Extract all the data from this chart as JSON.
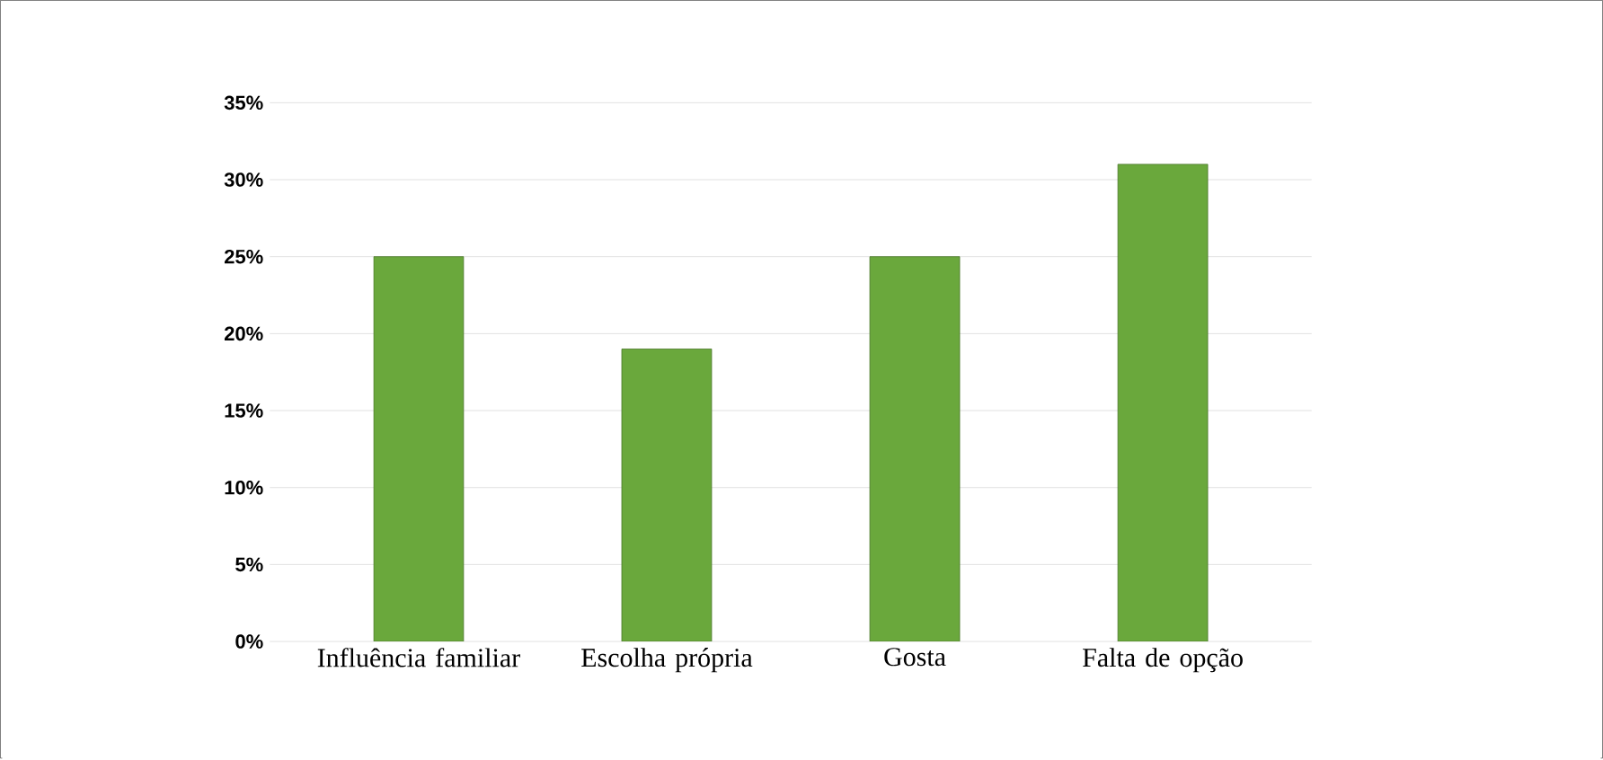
{
  "chart_data": {
    "type": "bar",
    "categories": [
      "Influência familiar",
      "Escolha própria",
      "Gosta",
      "Falta de opção"
    ],
    "values": [
      25,
      19,
      25,
      31
    ],
    "color": "#6aa83c",
    "ylim": [
      0,
      35
    ],
    "yticks": [
      {
        "value": 0,
        "label": "0%"
      },
      {
        "value": 5,
        "label": "5%"
      },
      {
        "value": 10,
        "label": "10%"
      },
      {
        "value": 15,
        "label": "15%"
      },
      {
        "value": 20,
        "label": "20%"
      },
      {
        "value": 25,
        "label": "25%"
      },
      {
        "value": 30,
        "label": "30%"
      },
      {
        "value": 35,
        "label": "35%"
      }
    ],
    "grid": "y"
  }
}
